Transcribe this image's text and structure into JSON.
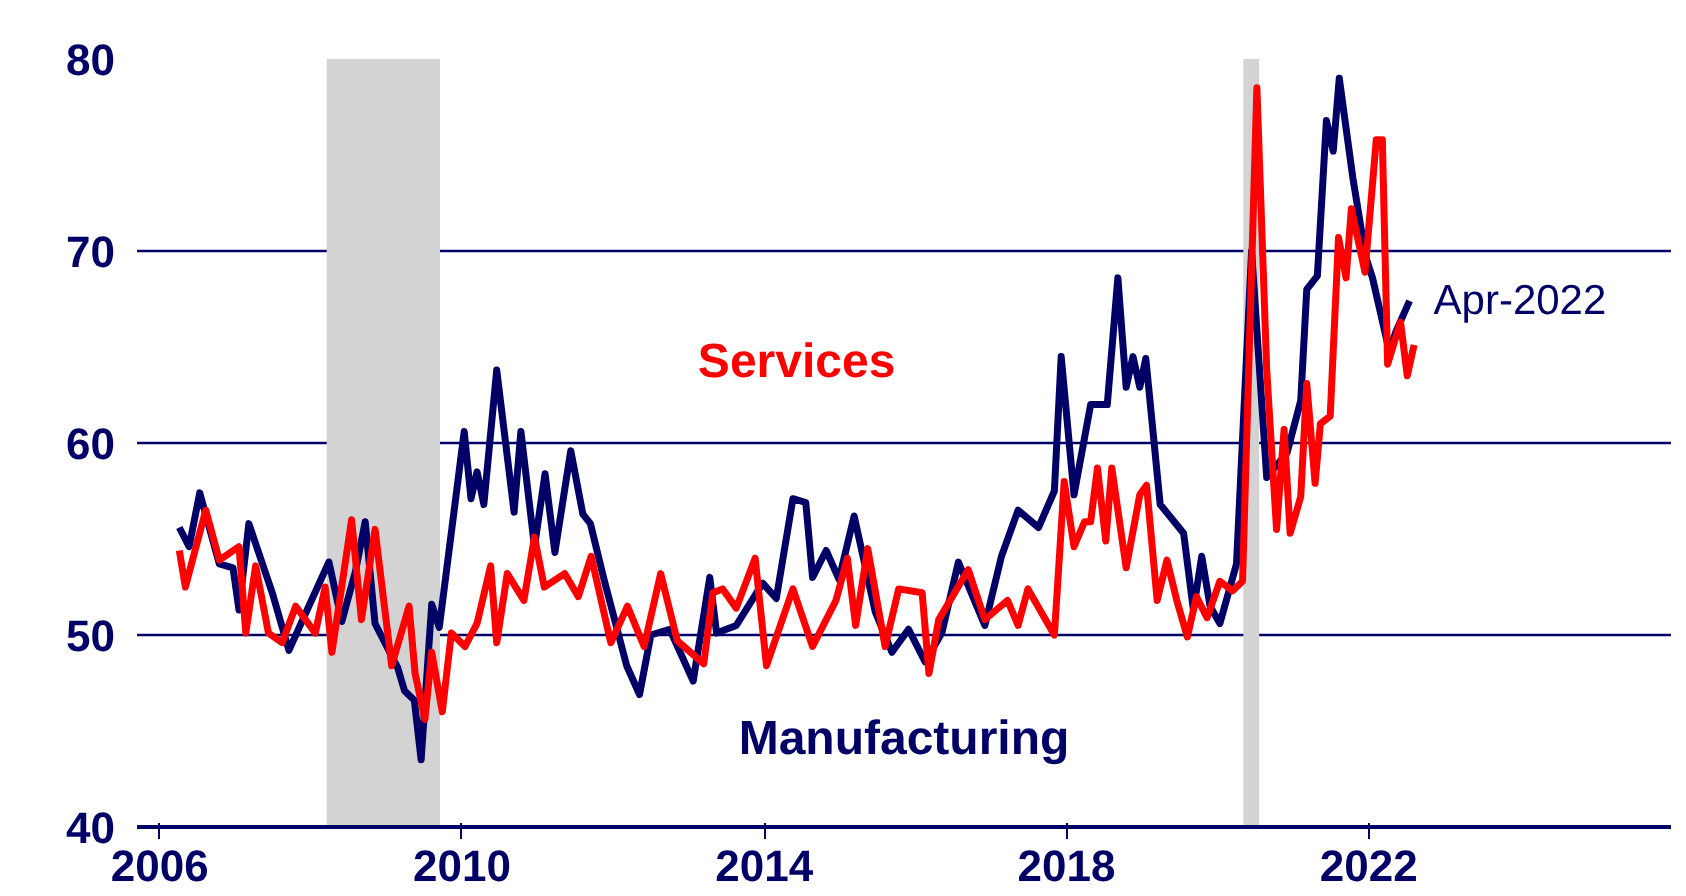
{
  "chart_data": {
    "type": "line",
    "series": [
      {
        "name": "Manufacturing",
        "color": "#000066",
        "x": [
          2006.26,
          2006.39,
          2006.53,
          2006.79,
          2006.97,
          2007.05,
          2007.18,
          2007.49,
          2007.71,
          2008.02,
          2008.24,
          2008.41,
          2008.59,
          2008.72,
          2008.85,
          2008.98,
          2009.15,
          2009.24,
          2009.37,
          2009.46,
          2009.6,
          2009.7,
          2010.03,
          2010.12,
          2010.2,
          2010.29,
          2010.46,
          2010.69,
          2010.78,
          2010.96,
          2011.1,
          2011.23,
          2011.44,
          2011.6,
          2011.7,
          2011.88,
          2012.18,
          2012.35,
          2012.5,
          2012.75,
          2013.06,
          2013.28,
          2013.37,
          2013.63,
          2013.98,
          2014.16,
          2014.38,
          2014.55,
          2014.64,
          2014.82,
          2014.99,
          2015.19,
          2015.47,
          2015.69,
          2015.91,
          2016.13,
          2016.35,
          2016.57,
          2016.92,
          2017.14,
          2017.36,
          2017.63,
          2017.84,
          2017.93,
          2018.1,
          2018.32,
          2018.54,
          2018.68,
          2018.79,
          2018.88,
          2018.97,
          2019.05,
          2019.24,
          2019.55,
          2019.68,
          2019.79,
          2019.9,
          2020.03,
          2020.25,
          2020.45,
          2020.65,
          2020.92,
          2021.1,
          2021.18,
          2021.32,
          2021.44,
          2021.53,
          2021.61,
          2021.79,
          2021.96,
          2022.05,
          2022.27,
          2022.36,
          2022.54
        ],
        "values": [
          55.6,
          54.6,
          57.4,
          53.7,
          53.5,
          51.3,
          55.8,
          52.2,
          49.2,
          51.9,
          53.8,
          50.7,
          53.3,
          55.9,
          50.6,
          49.6,
          48.3,
          47.1,
          46.6,
          43.5,
          51.6,
          50.4,
          60.6,
          57.1,
          58.5,
          56.8,
          63.8,
          56.4,
          60.6,
          54.6,
          58.4,
          54.3,
          59.6,
          56.3,
          55.8,
          52.9,
          48.4,
          46.9,
          50.0,
          50.3,
          47.6,
          53.0,
          50.1,
          50.5,
          52.7,
          51.9,
          57.1,
          56.9,
          53.0,
          54.4,
          52.9,
          56.2,
          51.2,
          49.1,
          50.3,
          48.6,
          50.1,
          53.8,
          50.5,
          54.1,
          56.5,
          55.6,
          57.5,
          64.5,
          57.3,
          62.0,
          62.0,
          68.6,
          62.9,
          64.5,
          62.9,
          64.4,
          56.8,
          55.3,
          51.3,
          54.1,
          51.5,
          50.6,
          53.7,
          70.0,
          58.2,
          59.5,
          62.2,
          68.0,
          68.7,
          76.8,
          75.2,
          79.0,
          73.8,
          69.7,
          68.6,
          64.8,
          65.8,
          67.4
        ]
      },
      {
        "name": "Services",
        "color": "#ff0000",
        "x": [
          2006.26,
          2006.34,
          2006.61,
          2006.79,
          2007.05,
          2007.14,
          2007.27,
          2007.44,
          2007.62,
          2007.8,
          2008.06,
          2008.19,
          2008.28,
          2008.54,
          2008.67,
          2008.85,
          2009.07,
          2009.3,
          2009.38,
          2009.51,
          2009.6,
          2009.74,
          2009.86,
          2010.04,
          2010.2,
          2010.38,
          2010.46,
          2010.6,
          2010.82,
          2010.96,
          2011.09,
          2011.36,
          2011.54,
          2011.71,
          2011.97,
          2012.19,
          2012.41,
          2012.63,
          2012.85,
          2013.2,
          2013.32,
          2013.45,
          2013.63,
          2013.88,
          2014.03,
          2014.38,
          2014.64,
          2014.95,
          2015.1,
          2015.21,
          2015.37,
          2015.6,
          2015.78,
          2016.09,
          2016.18,
          2016.31,
          2016.7,
          2016.92,
          2017.22,
          2017.36,
          2017.49,
          2017.84,
          2017.97,
          2018.1,
          2018.24,
          2018.32,
          2018.41,
          2018.52,
          2018.6,
          2018.79,
          2018.97,
          2019.06,
          2019.2,
          2019.33,
          2019.46,
          2019.6,
          2019.72,
          2019.86,
          2020.03,
          2020.2,
          2020.33,
          2020.52,
          2020.65,
          2020.78,
          2020.88,
          2020.96,
          2021.1,
          2021.18,
          2021.29,
          2021.36,
          2021.49,
          2021.6,
          2021.7,
          2021.77,
          2021.95,
          2022.1,
          2022.18,
          2022.25,
          2022.42,
          2022.51,
          2022.6
        ],
        "values": [
          54.4,
          52.5,
          56.5,
          53.9,
          54.6,
          50.1,
          53.6,
          50.1,
          49.6,
          51.5,
          50.1,
          52.5,
          49.1,
          56.0,
          50.8,
          55.5,
          48.4,
          51.5,
          48.0,
          45.6,
          49.1,
          46.0,
          50.1,
          49.4,
          50.6,
          53.6,
          49.6,
          53.2,
          51.8,
          55.1,
          52.5,
          53.2,
          52.0,
          54.1,
          49.6,
          51.5,
          49.4,
          53.2,
          49.7,
          48.5,
          52.2,
          52.4,
          51.4,
          54.0,
          48.4,
          52.4,
          49.4,
          51.8,
          54.0,
          50.5,
          54.5,
          49.4,
          52.4,
          52.2,
          48.0,
          50.8,
          53.4,
          50.8,
          51.8,
          50.5,
          52.4,
          50.0,
          58.0,
          54.6,
          55.9,
          55.9,
          58.7,
          54.9,
          58.7,
          53.5,
          57.3,
          57.8,
          51.8,
          53.9,
          51.8,
          49.9,
          52.0,
          50.9,
          52.8,
          52.3,
          52.8,
          78.5,
          63.8,
          55.5,
          60.7,
          55.3,
          57.2,
          63.1,
          57.9,
          61.0,
          61.4,
          70.7,
          68.6,
          72.2,
          68.9,
          75.8,
          75.8,
          64.1,
          66.3,
          63.5,
          65.1
        ]
      }
    ],
    "xlim": [
      2005.7,
      2026.0
    ],
    "xticks": [
      2006,
      2010,
      2014,
      2018,
      2022
    ],
    "ylim": [
      40,
      80
    ],
    "yticks": [
      40,
      50,
      60,
      70,
      80
    ],
    "grid": "y",
    "bands": [
      {
        "axis": "x",
        "from": 2008.21,
        "to": 2009.71,
        "color": "#d3d3d3"
      },
      {
        "axis": "x",
        "from": 2020.34,
        "to": 2020.55,
        "color": "#d3d3d3"
      }
    ],
    "annotations": [
      {
        "text": "Apr-2022",
        "x": 2022.54,
        "y": 67.4
      }
    ]
  }
}
